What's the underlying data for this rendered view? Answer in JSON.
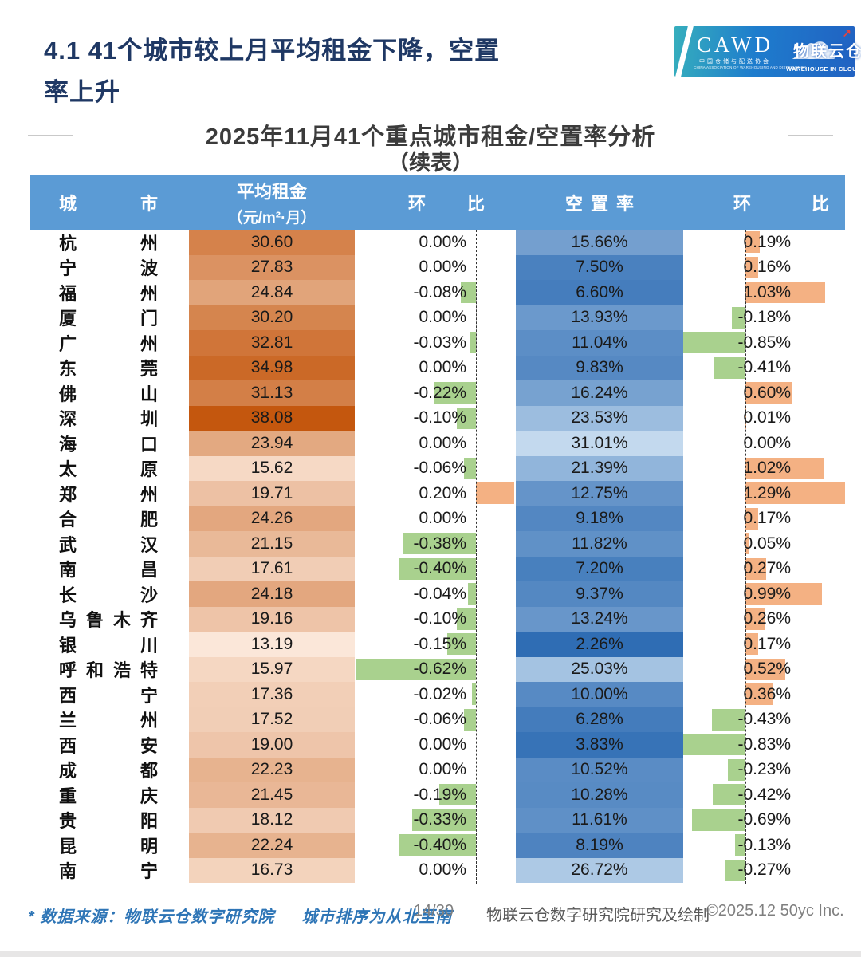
{
  "page": {
    "title": "4.1 41个城市较上月平均租金下降，空置率上升"
  },
  "logo": {
    "cawd": "CAWD",
    "cawd_cn": "中国仓储与配送协会",
    "cawd_en": "CHINA ASSOCIATION OF WAREHOUSING AND DISTRIBUTION",
    "brand": "物联云仓",
    "brand_sub": "WAREHOUSE IN CLOUD",
    "arrow_icon": "↗",
    "cloud_icon": "☁"
  },
  "subtitle": {
    "line1": "2025年11月41个重点城市租金/空置率分析",
    "line2": "（续表）"
  },
  "table_header": {
    "col_city": "城市",
    "col_rent_line1": "平均租金",
    "col_rent_line2": "（元/m²·月）",
    "col_mom1": "环比",
    "col_vacancy": "空置率",
    "col_mom2": "环比"
  },
  "chart_data": {
    "type": "table",
    "title": "2025年11月41个重点城市租金/空置率分析（续表）",
    "columns": [
      "城市",
      "平均租金（元/m²·月）",
      "环比",
      "空置率",
      "环比"
    ],
    "rows": [
      {
        "city": "杭州",
        "rent": 30.6,
        "rent_mom": 0.0,
        "vacancy": 15.66,
        "vacancy_mom": 0.19
      },
      {
        "city": "宁波",
        "rent": 27.83,
        "rent_mom": 0.0,
        "vacancy": 7.5,
        "vacancy_mom": 0.16
      },
      {
        "city": "福州",
        "rent": 24.84,
        "rent_mom": -0.08,
        "vacancy": 6.6,
        "vacancy_mom": 1.03
      },
      {
        "city": "厦门",
        "rent": 30.2,
        "rent_mom": 0.0,
        "vacancy": 13.93,
        "vacancy_mom": -0.18
      },
      {
        "city": "广州",
        "rent": 32.81,
        "rent_mom": -0.03,
        "vacancy": 11.04,
        "vacancy_mom": -0.85
      },
      {
        "city": "东莞",
        "rent": 34.98,
        "rent_mom": 0.0,
        "vacancy": 9.83,
        "vacancy_mom": -0.41
      },
      {
        "city": "佛山",
        "rent": 31.13,
        "rent_mom": -0.22,
        "vacancy": 16.24,
        "vacancy_mom": 0.6
      },
      {
        "city": "深圳",
        "rent": 38.08,
        "rent_mom": -0.1,
        "vacancy": 23.53,
        "vacancy_mom": 0.01
      },
      {
        "city": "海口",
        "rent": 23.94,
        "rent_mom": 0.0,
        "vacancy": 31.01,
        "vacancy_mom": 0.0
      },
      {
        "city": "太原",
        "rent": 15.62,
        "rent_mom": -0.06,
        "vacancy": 21.39,
        "vacancy_mom": 1.02
      },
      {
        "city": "郑州",
        "rent": 19.71,
        "rent_mom": 0.2,
        "vacancy": 12.75,
        "vacancy_mom": 1.29
      },
      {
        "city": "合肥",
        "rent": 24.26,
        "rent_mom": 0.0,
        "vacancy": 9.18,
        "vacancy_mom": 0.17
      },
      {
        "city": "武汉",
        "rent": 21.15,
        "rent_mom": -0.38,
        "vacancy": 11.82,
        "vacancy_mom": 0.05
      },
      {
        "city": "南昌",
        "rent": 17.61,
        "rent_mom": -0.4,
        "vacancy": 7.2,
        "vacancy_mom": 0.27
      },
      {
        "city": "长沙",
        "rent": 24.18,
        "rent_mom": -0.04,
        "vacancy": 9.37,
        "vacancy_mom": 0.99
      },
      {
        "city": "乌鲁木齐",
        "rent": 19.16,
        "rent_mom": -0.1,
        "vacancy": 13.24,
        "vacancy_mom": 0.26
      },
      {
        "city": "银川",
        "rent": 13.19,
        "rent_mom": -0.15,
        "vacancy": 2.26,
        "vacancy_mom": 0.17
      },
      {
        "city": "呼和浩特",
        "rent": 15.97,
        "rent_mom": -0.62,
        "vacancy": 25.03,
        "vacancy_mom": 0.52
      },
      {
        "city": "西宁",
        "rent": 17.36,
        "rent_mom": -0.02,
        "vacancy": 10.0,
        "vacancy_mom": 0.36
      },
      {
        "city": "兰州",
        "rent": 17.52,
        "rent_mom": -0.06,
        "vacancy": 6.28,
        "vacancy_mom": -0.43
      },
      {
        "city": "西安",
        "rent": 19.0,
        "rent_mom": 0.0,
        "vacancy": 3.83,
        "vacancy_mom": -0.83
      },
      {
        "city": "成都",
        "rent": 22.23,
        "rent_mom": 0.0,
        "vacancy": 10.52,
        "vacancy_mom": -0.23
      },
      {
        "city": "重庆",
        "rent": 21.45,
        "rent_mom": -0.19,
        "vacancy": 10.28,
        "vacancy_mom": -0.42
      },
      {
        "city": "贵阳",
        "rent": 18.12,
        "rent_mom": -0.33,
        "vacancy": 11.61,
        "vacancy_mom": -0.69
      },
      {
        "city": "昆明",
        "rent": 22.24,
        "rent_mom": -0.4,
        "vacancy": 8.19,
        "vacancy_mom": -0.13
      },
      {
        "city": "南宁",
        "rent": 16.73,
        "rent_mom": 0.0,
        "vacancy": 26.72,
        "vacancy_mom": -0.27
      }
    ],
    "style": {
      "rent_min": 13.19,
      "rent_max": 38.08,
      "rent_light": "#FBE7D9",
      "rent_dark": "#C4570E",
      "vac_min": 2.26,
      "vac_max": 31.01,
      "vac_dark": "#2F6DB4",
      "vac_light": "#C3D9EE",
      "pos": "#F4B183",
      "neg": "#A9D18E",
      "rent_mom_scale": 242,
      "rent_axis": 559,
      "vac_mom_scale": 97,
      "vac_axis": 897,
      "header_bg": "#5B9BD5",
      "title_color": "#1F3864"
    }
  },
  "footer": {
    "source_note": "* 数据来源：物联云仓数字研究院",
    "order_note": "城市排序为从北至南",
    "page": "14/30",
    "credit": "物联云仓数字研究院研究及绘制",
    "copyright": "©2025.12 50yc Inc."
  }
}
